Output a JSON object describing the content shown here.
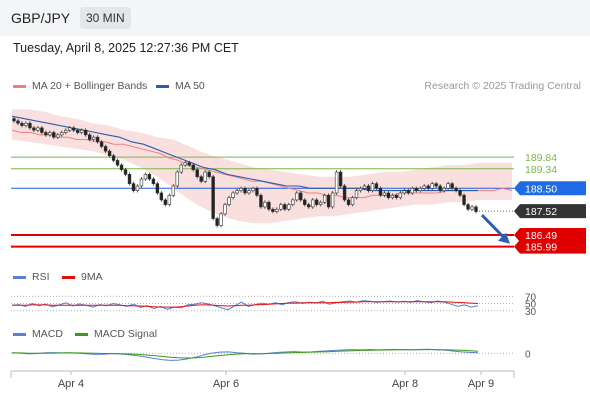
{
  "header": {
    "pair": "GBP/JPY",
    "timeframe": "30 MIN",
    "datetime": "Tuesday, April 8, 2025 12:27:36 PM CET"
  },
  "legend": {
    "ma20_label": "MA 20 + Bollinger Bands",
    "ma20_color": "#f08080",
    "ma50_label": "MA 50",
    "ma50_color": "#2a5ea8",
    "credit": "Research © 2025 Trading Central"
  },
  "rsi_legend": {
    "rsi_label": "RSI",
    "rsi_color": "#5b7fd6",
    "ma_label": "9MA",
    "ma_color": "#e01010"
  },
  "macd_legend": {
    "macd_label": "MACD",
    "macd_color": "#5b7fd6",
    "signal_label": "MACD Signal",
    "signal_color": "#3a9a1a"
  },
  "chart_data": [
    {
      "type": "candlestick",
      "x_tick_labels": [
        "Apr 4",
        "Apr 6",
        "Apr 8",
        "Apr 9"
      ],
      "ylim": [
        185.2,
        192.3
      ],
      "current_price": 187.52,
      "levels": [
        {
          "label": "189.84",
          "value": 189.84,
          "kind": "resistance",
          "color": "#7ab84a"
        },
        {
          "label": "189.34",
          "value": 189.34,
          "kind": "resistance",
          "color": "#7ab84a"
        },
        {
          "label": "188.50",
          "value": 188.5,
          "kind": "pivot",
          "color": "#1f5fe0"
        },
        {
          "label": "187.52",
          "value": 187.52,
          "kind": "last",
          "color": "#333333"
        },
        {
          "label": "186.49",
          "value": 186.49,
          "kind": "support",
          "color": "#e00000"
        },
        {
          "label": "185.99",
          "value": 185.99,
          "kind": "support",
          "color": "#e00000"
        }
      ],
      "close_series": [
        191.4,
        191.3,
        191.2,
        191.3,
        191.1,
        191.0,
        191.1,
        190.9,
        190.8,
        190.9,
        190.7,
        190.8,
        190.9,
        191.0,
        191.1,
        191.0,
        190.9,
        191.0,
        190.8,
        190.6,
        190.7,
        190.5,
        190.3,
        190.1,
        189.9,
        189.7,
        189.5,
        189.3,
        189.1,
        188.7,
        188.4,
        188.6,
        188.9,
        189.1,
        188.9,
        188.7,
        188.3,
        188.0,
        187.8,
        188.2,
        188.6,
        189.2,
        189.5,
        189.6,
        189.5,
        189.3,
        189.0,
        188.8,
        189.2,
        189.0,
        187.2,
        186.9,
        187.4,
        187.8,
        188.1,
        188.3,
        188.4,
        188.5,
        188.3,
        188.4,
        188.5,
        188.2,
        187.7,
        187.9,
        187.6,
        187.5,
        187.6,
        187.8,
        187.6,
        187.8,
        188.0,
        188.3,
        188.0,
        187.8,
        187.7,
        188.0,
        187.8,
        187.9,
        188.2,
        187.7,
        188.3,
        189.2,
        188.6,
        188.0,
        187.8,
        188.1,
        188.4,
        188.5,
        188.6,
        188.4,
        188.7,
        188.5,
        188.2,
        188.3,
        188.1,
        188.2,
        188.1,
        188.3,
        188.4,
        188.3,
        188.5,
        188.4,
        188.5,
        188.6,
        188.5,
        188.7,
        188.6,
        188.4,
        188.5,
        188.7,
        188.5,
        188.4,
        188.2,
        187.8,
        187.6,
        187.7,
        187.5
      ],
      "ma20_series": [
        191.0,
        190.9,
        190.9,
        190.8,
        190.8,
        190.7,
        190.7,
        190.6,
        190.6,
        190.5,
        190.5,
        190.4,
        190.4,
        190.3,
        190.2,
        190.1,
        190.0,
        189.8,
        189.7,
        189.5,
        189.4,
        189.3,
        189.2,
        189.1,
        189.0,
        188.9,
        188.8,
        188.8,
        188.7,
        188.6,
        188.5,
        188.4,
        188.3,
        188.3,
        188.2,
        188.2,
        188.1,
        188.1,
        188.1,
        188.2,
        188.2,
        188.2,
        188.3,
        188.3,
        188.3,
        188.3,
        188.3,
        188.4,
        188.4,
        188.4,
        188.4,
        188.4,
        188.4,
        188.5,
        188.4
      ],
      "bb_upper": [
        191.9,
        191.9,
        191.8,
        191.6,
        191.5,
        191.3,
        191.2,
        191.0,
        190.9,
        190.7,
        190.6,
        190.3,
        190.0,
        189.8,
        189.6,
        189.4,
        189.3,
        189.2,
        189.1,
        189.0,
        189.0,
        189.0,
        189.1,
        189.2,
        189.2,
        189.3,
        189.4,
        189.5,
        189.5,
        189.6,
        189.6,
        189.6
      ],
      "bb_lower": [
        190.6,
        190.5,
        190.4,
        190.3,
        190.2,
        190.1,
        189.9,
        189.7,
        189.4,
        189.0,
        188.5,
        188.0,
        187.6,
        187.3,
        187.1,
        187.0,
        187.0,
        187.1,
        187.2,
        187.3,
        187.3,
        187.4,
        187.5,
        187.6,
        187.7,
        187.8,
        187.8,
        187.9,
        187.9,
        188.0,
        188.0,
        188.0
      ],
      "ma50_series": [
        191.6,
        191.5,
        191.4,
        191.3,
        191.2,
        191.1,
        191.0,
        190.9,
        190.8,
        190.7,
        190.5,
        190.4,
        190.2,
        190.0,
        189.8,
        189.6,
        189.4,
        189.3,
        189.1,
        189.0,
        188.9,
        188.8,
        188.7,
        188.6,
        188.6,
        188.5,
        188.5,
        188.5,
        188.5,
        188.5,
        188.4,
        188.4,
        188.4,
        188.4,
        188.4,
        188.4,
        188.4,
        188.4,
        188.4,
        188.4
      ],
      "forecast_arrow": {
        "from": 187.52,
        "to": 186.2,
        "direction": "down"
      }
    },
    {
      "type": "line",
      "name": "RSI",
      "levels": [
        70,
        50,
        30
      ],
      "ylim": [
        10,
        90
      ],
      "series": [
        {
          "name": "RSI",
          "values": [
            45,
            47,
            42,
            50,
            44,
            48,
            41,
            46,
            52,
            43,
            49,
            45,
            40,
            47,
            44,
            50,
            46,
            42,
            48,
            39,
            44,
            36,
            42,
            34,
            40,
            38,
            46,
            48,
            52,
            49,
            44,
            38,
            33,
            44,
            54,
            42,
            47,
            51,
            48,
            52,
            46,
            53,
            55,
            50,
            54,
            51,
            56,
            48,
            52,
            55,
            57,
            54,
            58,
            56,
            53,
            55,
            57,
            54,
            56,
            53,
            58,
            55,
            52,
            57,
            54,
            48,
            42,
            46,
            40,
            44
          ]
        },
        {
          "name": "9MA",
          "values": [
            45,
            45,
            45,
            46,
            46,
            46,
            45,
            45,
            45,
            45,
            45,
            45,
            45,
            45,
            45,
            45,
            45,
            44,
            44,
            43,
            42,
            41,
            40,
            40,
            40,
            41,
            43,
            45,
            46,
            46,
            45,
            44,
            43,
            44,
            45,
            45,
            46,
            47,
            48,
            49,
            50,
            51,
            51,
            52,
            52,
            52,
            52,
            52,
            53,
            53,
            54,
            54,
            55,
            55,
            55,
            55,
            55,
            55,
            55,
            55,
            55,
            55,
            55,
            55,
            55,
            54,
            53,
            52,
            51,
            50
          ]
        }
      ],
      "tick_labels": [
        "70",
        "50",
        "30"
      ]
    },
    {
      "type": "line",
      "name": "MACD",
      "zero_label": "0",
      "ylim": [
        -1.2,
        0.9
      ],
      "series": [
        {
          "name": "MACD",
          "values": [
            0.05,
            0.02,
            -0.05,
            -0.02,
            0.04,
            0.06,
            0.03,
            0.05,
            0.0,
            -0.05,
            -0.1,
            -0.08,
            -0.03,
            -0.06,
            -0.12,
            -0.2,
            -0.32,
            -0.45,
            -0.55,
            -0.62,
            -0.6,
            -0.5,
            -0.35,
            -0.15,
            0.02,
            0.1,
            0.12,
            0.05,
            0.0,
            -0.08,
            -0.05,
            0.02,
            0.08,
            0.12,
            0.15,
            0.1,
            0.12,
            0.18,
            0.22,
            0.25,
            0.3,
            0.32,
            0.3,
            0.33,
            0.3,
            0.32,
            0.34,
            0.32,
            0.3,
            0.33,
            0.35,
            0.3,
            0.28,
            0.2,
            0.12,
            0.08,
            0.04
          ]
        },
        {
          "name": "MACD Signal",
          "values": [
            0.03,
            0.03,
            0.01,
            0.0,
            0.01,
            0.02,
            0.03,
            0.03,
            0.03,
            0.02,
            0.0,
            -0.02,
            -0.03,
            -0.04,
            -0.06,
            -0.09,
            -0.14,
            -0.2,
            -0.27,
            -0.34,
            -0.39,
            -0.41,
            -0.4,
            -0.35,
            -0.27,
            -0.19,
            -0.12,
            -0.07,
            -0.04,
            -0.04,
            -0.04,
            -0.02,
            0.0,
            0.03,
            0.06,
            0.08,
            0.1,
            0.12,
            0.14,
            0.17,
            0.2,
            0.23,
            0.25,
            0.27,
            0.28,
            0.29,
            0.3,
            0.31,
            0.31,
            0.31,
            0.32,
            0.32,
            0.31,
            0.29,
            0.26,
            0.22,
            0.18
          ]
        }
      ]
    }
  ]
}
